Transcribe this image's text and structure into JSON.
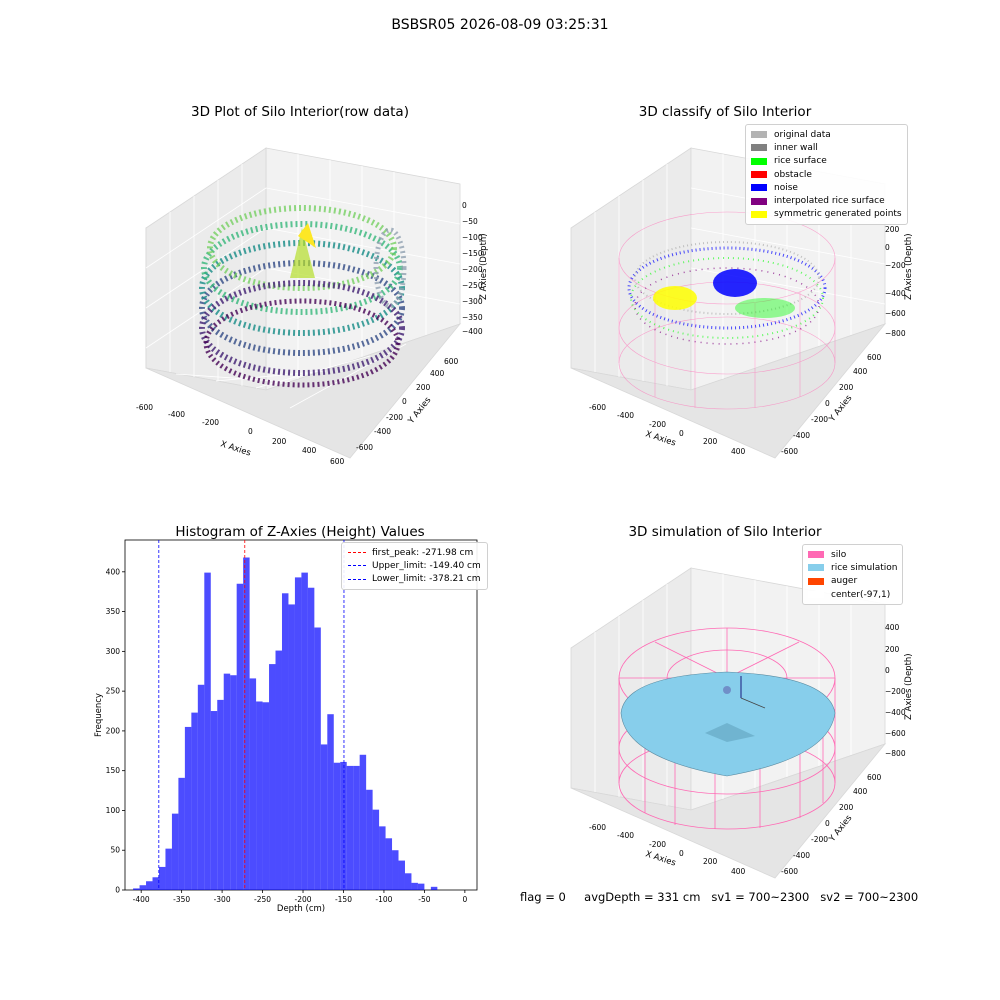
{
  "suptitle": "BSBSR05 2026-08-09 03:25:31",
  "panels": {
    "raw": {
      "title": "3D Plot of Silo Interior(row data)",
      "x_label": "X Axies",
      "y_label": "Y Axies",
      "z_label": "Z Axies (Depth)",
      "x_ticks": [
        "-600",
        "-400",
        "-200",
        "0",
        "200",
        "400",
        "600"
      ],
      "y_ticks": [
        "-600",
        "-400",
        "-200",
        "0",
        "200",
        "400",
        "600"
      ],
      "z_ticks": [
        "0",
        "−50",
        "−100",
        "−150",
        "−200",
        "−250",
        "−300",
        "−350",
        "−400"
      ]
    },
    "classify": {
      "title": "3D classify of Silo Interior",
      "x_label": "X Axies",
      "y_label": "Y Axies",
      "z_label": "Z Axies (Depth)",
      "x_ticks": [
        "-600",
        "-400",
        "-200",
        "0",
        "200",
        "400"
      ],
      "y_ticks": [
        "-600",
        "-400",
        "-200",
        "0",
        "200",
        "400",
        "600"
      ],
      "z_ticks": [
        "200",
        "0",
        "−200",
        "−400",
        "−600",
        "−800"
      ],
      "legend": [
        {
          "label": "original data",
          "color": "#b3b3b3"
        },
        {
          "label": "inner wall",
          "color": "#808080"
        },
        {
          "label": "rice surface",
          "color": "#00ff00"
        },
        {
          "label": "obstacle",
          "color": "#ff0000"
        },
        {
          "label": "noise",
          "color": "#0000ff"
        },
        {
          "label": "interpolated rice surface",
          "color": "#800080"
        },
        {
          "label": "symmetric generated points",
          "color": "#ffff00"
        }
      ]
    },
    "simulation": {
      "title": "3D simulation of Silo Interior",
      "x_label": "X Axies",
      "y_label": "Y Axies",
      "z_label": "Z Axies (Depth)",
      "x_ticks": [
        "-600",
        "-400",
        "-200",
        "0",
        "200",
        "400"
      ],
      "y_ticks": [
        "-600",
        "-400",
        "-200",
        "0",
        "200",
        "400",
        "600"
      ],
      "z_ticks": [
        "400",
        "200",
        "0",
        "−200",
        "−400",
        "−600",
        "−800"
      ],
      "legend": [
        {
          "label": "silo",
          "color": "#ff69b4"
        },
        {
          "label": "rice simulation",
          "color": "#87ceeb"
        },
        {
          "label": "auger",
          "color": "#ff4500"
        },
        {
          "label": "center(-97,1)",
          "color": "#ffffff"
        }
      ]
    }
  },
  "footer": {
    "flag": "flag = 0",
    "avg": "avgDepth = 331 cm",
    "sv1": "sv1 = 700~2300",
    "sv2": "sv2 = 700~2300"
  },
  "chart_data": {
    "type": "bar",
    "title": "Histogram of Z-Axies (Height) Values",
    "xlabel": "Depth (cm)",
    "ylabel": "Frequency",
    "xlim": [
      -420,
      15
    ],
    "ylim": [
      0,
      440
    ],
    "x_ticks": [
      -400,
      -350,
      -300,
      -250,
      -200,
      -150,
      -100,
      -50,
      0
    ],
    "y_ticks": [
      0,
      50,
      100,
      150,
      200,
      250,
      300,
      350,
      400
    ],
    "bin_start": -410,
    "bin_width": 8,
    "values": [
      2,
      6,
      11,
      16,
      29,
      52,
      96,
      141,
      205,
      223,
      258,
      399,
      225,
      239,
      272,
      270,
      385,
      418,
      266,
      237,
      236,
      284,
      301,
      373,
      359,
      393,
      399,
      380,
      330,
      183,
      221,
      160,
      161,
      156,
      156,
      170,
      126,
      101,
      80,
      65,
      50,
      37,
      21,
      9,
      8,
      0,
      4,
      0
    ],
    "bar_color": "#0000ff",
    "lines": [
      {
        "label": "first_peak: -271.98 cm",
        "x": -271.98,
        "color": "#ff0000"
      },
      {
        "label": "Upper_limit: -149.40 cm",
        "x": -149.4,
        "color": "#0000ff"
      },
      {
        "label": "Lower_limit: -378.21 cm",
        "x": -378.21,
        "color": "#0000ff"
      }
    ]
  }
}
